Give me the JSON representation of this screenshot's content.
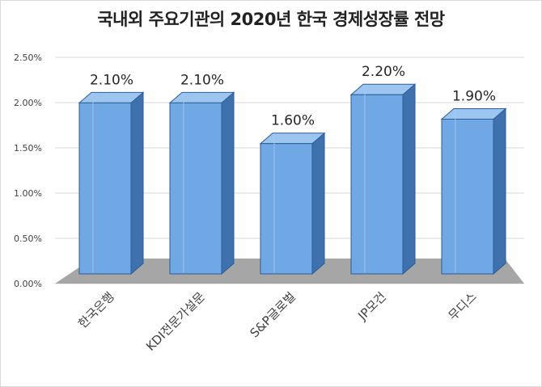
{
  "title": "국내외 주요기관의 2020년 한국 경제성장률 전망",
  "chart_data": {
    "type": "bar",
    "title": "국내외 주요기관의 2020년 한국 경제성장률 전망",
    "categories": [
      "한국은행",
      "KDI전문가설문",
      "S&P글로벌",
      "JP모건",
      "무디스"
    ],
    "values": [
      2.1,
      2.1,
      1.6,
      2.2,
      1.9
    ],
    "data_labels": [
      "2.10%",
      "2.10%",
      "1.60%",
      "2.20%",
      "1.90%"
    ],
    "y_ticks": [
      0,
      0.5,
      1.0,
      1.5,
      2.0,
      2.5
    ],
    "y_tick_labels": [
      "0.00%",
      "0.50%",
      "1.00%",
      "1.50%",
      "2.00%",
      "2.50%"
    ],
    "ylim": [
      0,
      2.5
    ],
    "xlabel": "",
    "ylabel": "",
    "grid": true,
    "legend": "none",
    "style": "3d-column",
    "colors": {
      "bar_front": "#6fa8e4",
      "bar_side": "#3f72ad",
      "bar_top": "#9cc5f0",
      "bar_edge": "#2b5d96",
      "floor": "#a6a6a6",
      "grid": "#d9d9d9",
      "text": "#404040"
    }
  }
}
